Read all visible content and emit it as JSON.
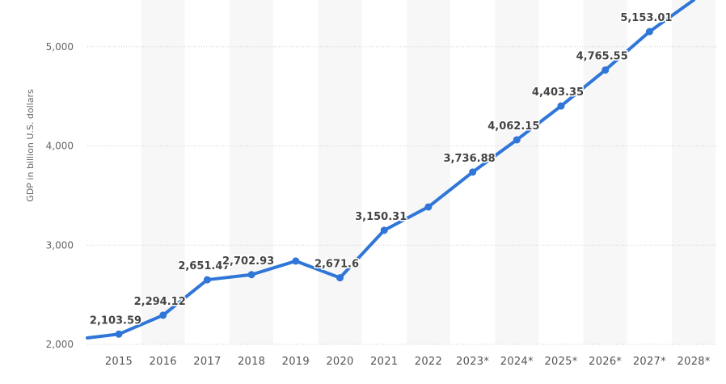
{
  "chart_data": {
    "type": "line",
    "title": "",
    "xlabel": "",
    "ylabel": "GDP in billion U.S. dollars",
    "categories": [
      "2015",
      "2016",
      "2017",
      "2018",
      "2019",
      "2020",
      "2021",
      "2022",
      "2023*",
      "2024*",
      "2025*",
      "2026*",
      "2027*",
      "2028*"
    ],
    "series": [
      {
        "name": "GDP",
        "color": "#2f76d8",
        "values": [
          2103.59,
          2294.12,
          2651.47,
          2702.93,
          2840,
          2671.6,
          3150.31,
          3386,
          3736.88,
          4062.15,
          4403.35,
          4765.55,
          5153.01,
          null
        ],
        "labels": [
          "2,103.59",
          "2,294.12",
          "2,651.47",
          "2,702.93",
          "",
          "2,671.6",
          "3,150.31",
          "",
          "3,736.88",
          "4,062.15",
          "4,403.35",
          "4,765.55",
          "5,153.01",
          ""
        ]
      }
    ],
    "yticks": [
      2000,
      3000,
      4000,
      5000
    ],
    "ytick_labels": [
      "2,000",
      "3,000",
      "4,000",
      "5,000"
    ],
    "ylim": [
      2000,
      5470
    ],
    "grid": true,
    "alternating_column_bands": true,
    "legend": null,
    "notes": "2019 and 2022 values are estimated from the axis (no data label shown). 2028* is beyond the visible top edge of the plot; its point and label are not rendered, so its value is unknown."
  }
}
